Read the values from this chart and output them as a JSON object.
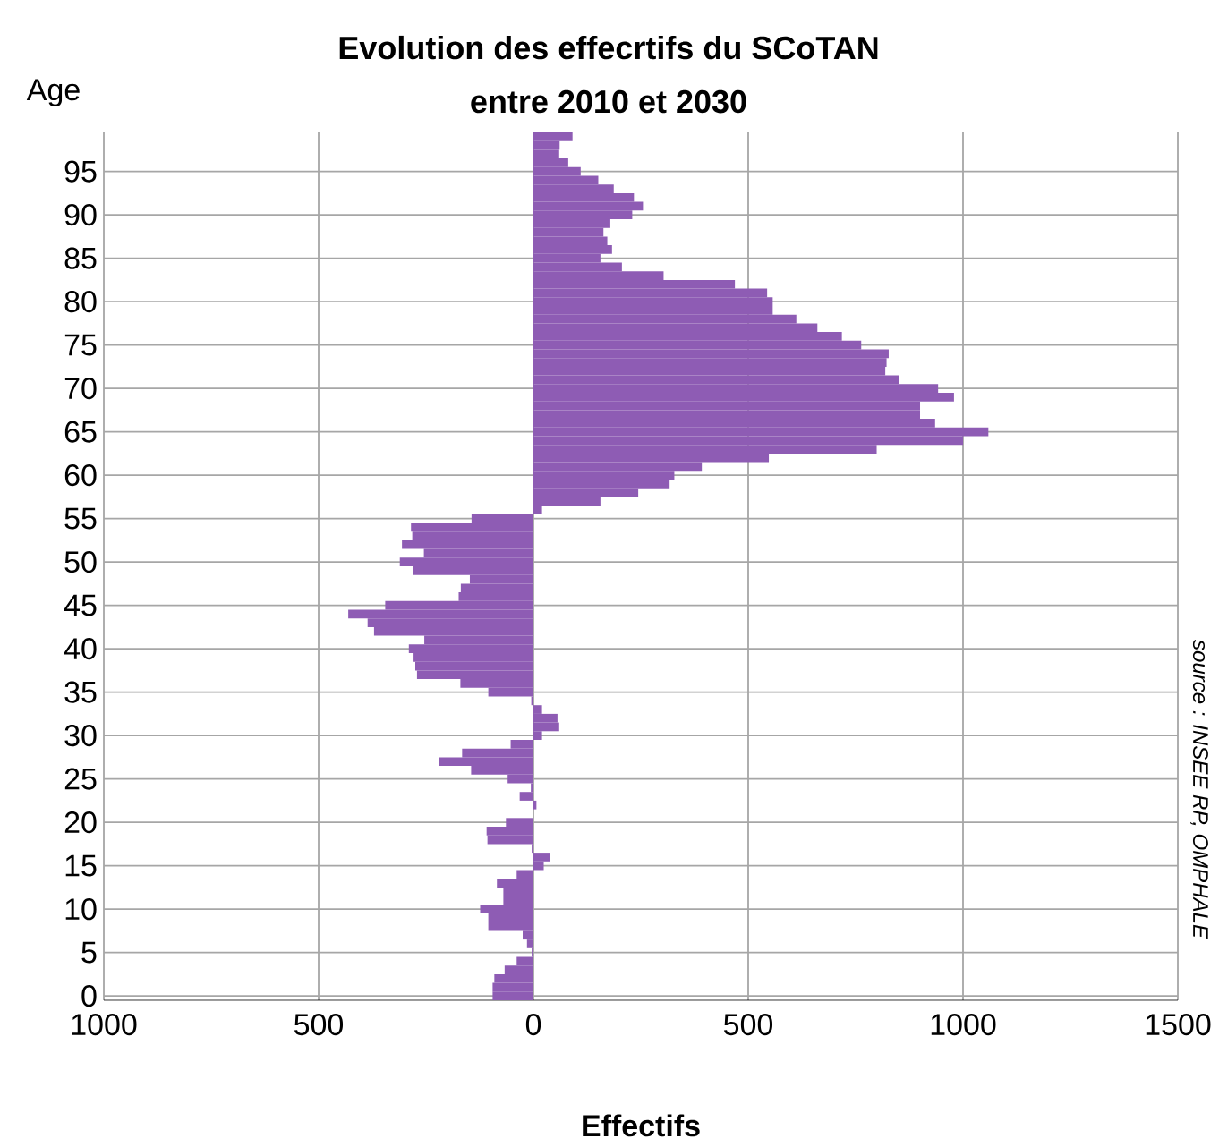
{
  "chart_data": {
    "type": "bar",
    "orientation": "horizontal",
    "title": "Evolution des effecrtifs du SCoTAN",
    "subtitle": "entre 2010 et 2030",
    "xlabel": "Effectifs",
    "ylabel": "Age",
    "annotations": [
      "source : INSEE RP, OMPHALE"
    ],
    "categories": [
      null,
      null,
      null,
      null,
      "95",
      null,
      null,
      null,
      null,
      "90",
      null,
      null,
      null,
      null,
      "85",
      null,
      null,
      null,
      null,
      "80",
      null,
      null,
      null,
      null,
      "75",
      null,
      null,
      null,
      null,
      "70",
      null,
      null,
      null,
      null,
      "65",
      null,
      null,
      null,
      null,
      "60",
      null,
      null,
      null,
      null,
      "55",
      null,
      null,
      null,
      null,
      "50",
      null,
      null,
      null,
      null,
      "45",
      null,
      null,
      null,
      null,
      "40",
      null,
      null,
      null,
      null,
      "35",
      null,
      null,
      null,
      null,
      "30",
      null,
      null,
      null,
      null,
      "25",
      null,
      null,
      null,
      null,
      "20",
      null,
      null,
      null,
      null,
      "15",
      null,
      null,
      null,
      null,
      "10",
      null,
      null,
      null,
      null,
      "5",
      null,
      null,
      null,
      null,
      "0"
    ],
    "values": [
      91,
      61,
      60,
      81,
      110,
      151,
      187,
      234,
      255,
      230,
      179,
      163,
      172,
      183,
      156,
      206,
      303,
      469,
      544,
      557,
      557,
      612,
      661,
      718,
      763,
      827,
      822,
      819,
      850,
      942,
      979,
      900,
      900,
      935,
      1059,
      1000,
      799,
      548,
      392,
      328,
      317,
      244,
      156,
      20,
      -144,
      -285,
      -282,
      -306,
      -255,
      -311,
      -280,
      -148,
      -169,
      -174,
      -345,
      -431,
      -386,
      -371,
      -254,
      -290,
      -279,
      -275,
      -271,
      -170,
      -105,
      -5,
      20,
      56,
      60,
      20,
      -53,
      -166,
      -219,
      -145,
      -60,
      -6,
      -32,
      7,
      0,
      -64,
      -109,
      -107,
      -4,
      38,
      24,
      -39,
      -85,
      -70,
      -70,
      -124,
      -105,
      -105,
      -25,
      -15,
      -4,
      -39,
      -67,
      -91,
      -95,
      -95
    ],
    "color": "#8e5cb4",
    "xlim": [
      -1000,
      1500
    ],
    "xticks": [
      {
        "value": -1000,
        "label": "1000"
      },
      {
        "value": -500,
        "label": "500"
      },
      0,
      500,
      1000,
      1500
    ],
    "grid": true
  }
}
